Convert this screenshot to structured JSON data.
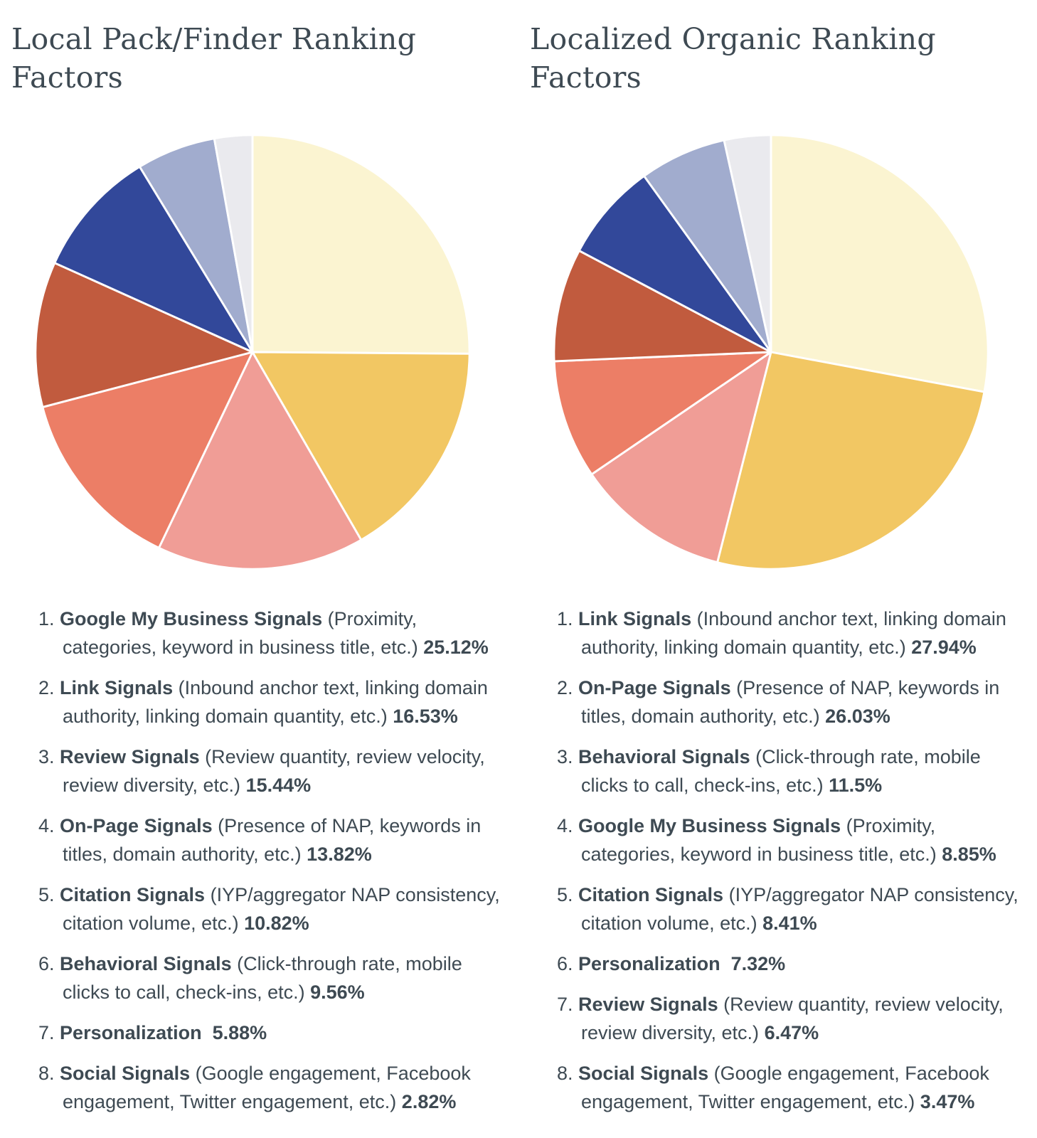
{
  "style": {
    "background": "#FFFFFF",
    "title_color": "#3E4A53",
    "text_color": "#3E4A53",
    "slice_border_color": "#FFFFFF"
  },
  "chart_data": [
    {
      "type": "pie",
      "title": "Local Pack/Finder Ranking Factors",
      "start": "12-oclock",
      "direction": "clockwise",
      "labels": [
        "Google My Business Signals",
        "Link Signals",
        "Review Signals",
        "On-Page Signals",
        "Citation Signals",
        "Behavioral Signals",
        "Personalization",
        "Social Signals"
      ],
      "values": [
        25.12,
        16.53,
        15.44,
        13.82,
        10.82,
        9.56,
        5.88,
        2.82
      ],
      "colors": [
        "#FBF4D1",
        "#F2C763",
        "#F09D96",
        "#EC7E66",
        "#C15B3E",
        "#32489A",
        "#A1ACCE",
        "#EAEAEE"
      ],
      "legend": [
        {
          "num": "1",
          "name": "Google My Business Signals",
          "desc": "(Proximity, categories, keyword in business title, etc.)",
          "pct": "25.12%"
        },
        {
          "num": "2",
          "name": "Link Signals",
          "desc": "(Inbound anchor text, linking domain authority, linking domain quantity, etc.)",
          "pct": "16.53%"
        },
        {
          "num": "3",
          "name": "Review Signals",
          "desc": "(Review quantity, review velocity, review diversity, etc.)",
          "pct": "15.44%"
        },
        {
          "num": "4",
          "name": "On-Page Signals",
          "desc": "(Presence of NAP, keywords in titles, domain authority, etc.)",
          "pct": "13.82%"
        },
        {
          "num": "5",
          "name": "Citation Signals",
          "desc": "(IYP/aggregator NAP consistency, citation volume, etc.)",
          "pct": "10.82%"
        },
        {
          "num": "6",
          "name": "Behavioral Signals",
          "desc": "(Click-through rate, mobile clicks to call, check-ins, etc.)",
          "pct": "9.56%"
        },
        {
          "num": "7",
          "name": "Personalization",
          "desc": "",
          "pct": "5.88%"
        },
        {
          "num": "8",
          "name": "Social Signals",
          "desc": "(Google engagement, Facebook engagement, Twitter engagement, etc.)",
          "pct": "2.82%"
        }
      ]
    },
    {
      "type": "pie",
      "title": "Localized Organic Ranking Factors",
      "start": "12-oclock",
      "direction": "clockwise",
      "labels": [
        "Link Signals",
        "On-Page Signals",
        "Behavioral Signals",
        "Google My Business Signals",
        "Citation Signals",
        "Personalization",
        "Review Signals",
        "Social Signals"
      ],
      "values": [
        27.94,
        26.03,
        11.5,
        8.85,
        8.41,
        7.32,
        6.47,
        3.47
      ],
      "colors": [
        "#FBF4D1",
        "#F2C763",
        "#F09D96",
        "#EC7E66",
        "#C15B3E",
        "#32489A",
        "#A1ACCE",
        "#EAEAEE"
      ],
      "legend": [
        {
          "num": "1",
          "name": "Link Signals",
          "desc": "(Inbound anchor text, linking domain authority, linking domain quantity, etc.)",
          "pct": "27.94%"
        },
        {
          "num": "2",
          "name": "On-Page Signals",
          "desc": "(Presence of NAP, keywords in titles, domain authority, etc.)",
          "pct": "26.03%"
        },
        {
          "num": "3",
          "name": "Behavioral Signals",
          "desc": "(Click-through rate, mobile clicks to call, check-ins, etc.)",
          "pct": "11.5%"
        },
        {
          "num": "4",
          "name": "Google My Business Signals",
          "desc": "(Proximity, categories, keyword in business title, etc.)",
          "pct": "8.85%"
        },
        {
          "num": "5",
          "name": "Citation Signals",
          "desc": "(IYP/aggregator NAP consistency, citation volume, etc.)",
          "pct": "8.41%"
        },
        {
          "num": "6",
          "name": "Personalization",
          "desc": "",
          "pct": "7.32%"
        },
        {
          "num": "7",
          "name": "Review Signals",
          "desc": "(Review quantity, review velocity, review diversity, etc.)",
          "pct": "6.47%"
        },
        {
          "num": "8",
          "name": "Social Signals",
          "desc": "(Google engagement, Facebook engagement, Twitter engagement, etc.)",
          "pct": "3.47%"
        }
      ]
    }
  ]
}
